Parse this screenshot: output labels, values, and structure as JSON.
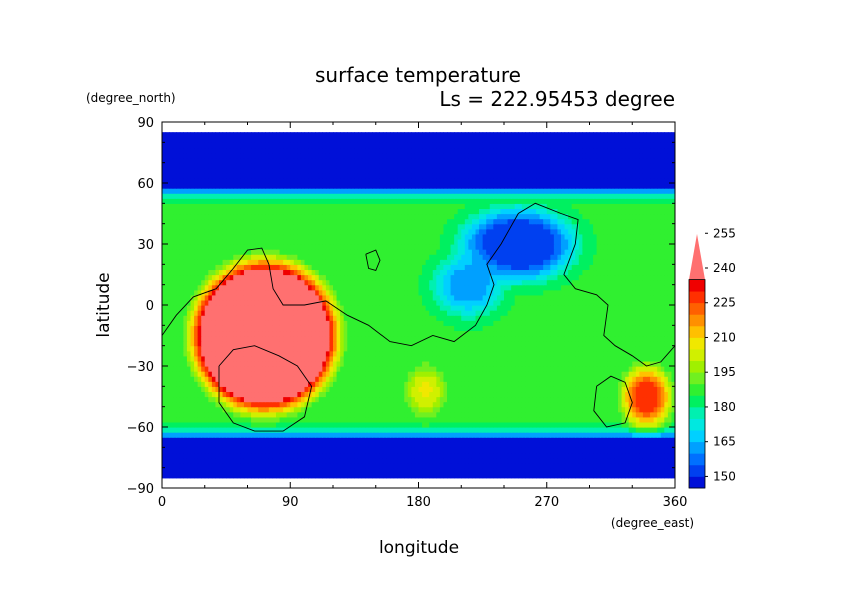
{
  "chart_data": {
    "type": "heatmap",
    "title": "surface temperature",
    "subtitle": "Ls = 222.95453 degree",
    "xlabel": "longitude",
    "ylabel": "latitude",
    "x_unit": "(degree_east)",
    "y_unit": "(degree_north)",
    "xlim": [
      0,
      360
    ],
    "ylim": [
      -90,
      90
    ],
    "x_ticks": [
      0,
      90,
      180,
      270,
      360
    ],
    "x_tick_labels": [
      "0",
      "90",
      "180",
      "270",
      "360"
    ],
    "y_ticks": [
      -90,
      -60,
      -30,
      0,
      30,
      60,
      90
    ],
    "y_tick_labels": [
      "−90",
      "−60",
      "−30",
      "0",
      "30",
      "60",
      "90"
    ],
    "data_extent": {
      "lat": [
        -85,
        85
      ]
    },
    "colorbar": {
      "levels": [
        145,
        150,
        155,
        160,
        165,
        170,
        175,
        180,
        185,
        190,
        195,
        200,
        205,
        210,
        215,
        220,
        225,
        230,
        235,
        240,
        245,
        250,
        255,
        260
      ],
      "colors": [
        "#0010d8",
        "#0040f0",
        "#0070ff",
        "#00a0ff",
        "#00d0ff",
        "#00e8e0",
        "#00f0b0",
        "#00f060",
        "#30f030",
        "#70f020",
        "#a0f000",
        "#d0f000",
        "#f0e800",
        "#ffc000",
        "#ff9000",
        "#ff6000",
        "#ff3000",
        "#f00000",
        "#ff7070"
      ],
      "tick_values": [
        150,
        165,
        180,
        195,
        210,
        225,
        240,
        255
      ],
      "tick_labels": [
        "150",
        "165",
        "180",
        "195",
        "210",
        "225",
        "240",
        "255"
      ],
      "extend": "max"
    },
    "field_model": {
      "background": 185,
      "features": [
        {
          "type": "band",
          "lat_max": 85,
          "lat_min": 58,
          "value": 146
        },
        {
          "type": "band",
          "lat_max": -66,
          "lat_min": -85,
          "value": 146
        },
        {
          "type": "blob",
          "lon": 72,
          "lat": -15,
          "rlon": 62,
          "rlat": 45,
          "value": 262,
          "flat": 0.55
        },
        {
          "type": "blob",
          "lon": 250,
          "lat": 30,
          "rlon": 55,
          "rlat": 25,
          "value": 150,
          "flat": 0.3
        },
        {
          "type": "blob",
          "lon": 215,
          "lat": 10,
          "rlon": 35,
          "rlat": 22,
          "value": 162,
          "flat": 0.2
        },
        {
          "type": "blob",
          "lon": 340,
          "lat": -45,
          "rlon": 25,
          "rlat": 22,
          "value": 228,
          "flat": 0.2
        },
        {
          "type": "blob",
          "lon": 185,
          "lat": -42,
          "rlon": 20,
          "rlat": 18,
          "value": 205,
          "flat": 0.2
        }
      ]
    },
    "contours": [
      [
        [
          0,
          -15
        ],
        [
          10,
          -5
        ],
        [
          22,
          4
        ],
        [
          38,
          8
        ],
        [
          50,
          18
        ],
        [
          60,
          27
        ],
        [
          70,
          28
        ],
        [
          75,
          20
        ],
        [
          78,
          8
        ],
        [
          85,
          0
        ],
        [
          100,
          0
        ],
        [
          115,
          2
        ],
        [
          130,
          -5
        ],
        [
          145,
          -10
        ],
        [
          160,
          -18
        ],
        [
          175,
          -20
        ],
        [
          190,
          -15
        ],
        [
          205,
          -18
        ],
        [
          220,
          -10
        ],
        [
          228,
          0
        ],
        [
          233,
          10
        ],
        [
          228,
          20
        ],
        [
          238,
          30
        ],
        [
          250,
          45
        ],
        [
          262,
          50
        ],
        [
          280,
          45
        ],
        [
          292,
          42
        ],
        [
          290,
          30
        ],
        [
          282,
          15
        ],
        [
          290,
          8
        ],
        [
          305,
          5
        ],
        [
          313,
          0
        ],
        [
          310,
          -15
        ],
        [
          318,
          -20
        ],
        [
          330,
          -25
        ],
        [
          340,
          -30
        ],
        [
          350,
          -28
        ],
        [
          360,
          -20
        ]
      ],
      [
        [
          40,
          -30
        ],
        [
          50,
          -22
        ],
        [
          65,
          -20
        ],
        [
          82,
          -25
        ],
        [
          95,
          -30
        ],
        [
          105,
          -40
        ],
        [
          100,
          -55
        ],
        [
          85,
          -62
        ],
        [
          65,
          -62
        ],
        [
          50,
          -58
        ],
        [
          40,
          -48
        ],
        [
          40,
          -30
        ]
      ],
      [
        [
          143,
          25
        ],
        [
          150,
          27
        ],
        [
          153,
          22
        ],
        [
          150,
          17
        ],
        [
          145,
          18
        ],
        [
          143,
          25
        ]
      ],
      [
        [
          305,
          -40
        ],
        [
          315,
          -35
        ],
        [
          325,
          -38
        ],
        [
          330,
          -48
        ],
        [
          325,
          -58
        ],
        [
          312,
          -60
        ],
        [
          303,
          -52
        ],
        [
          305,
          -40
        ]
      ]
    ]
  }
}
